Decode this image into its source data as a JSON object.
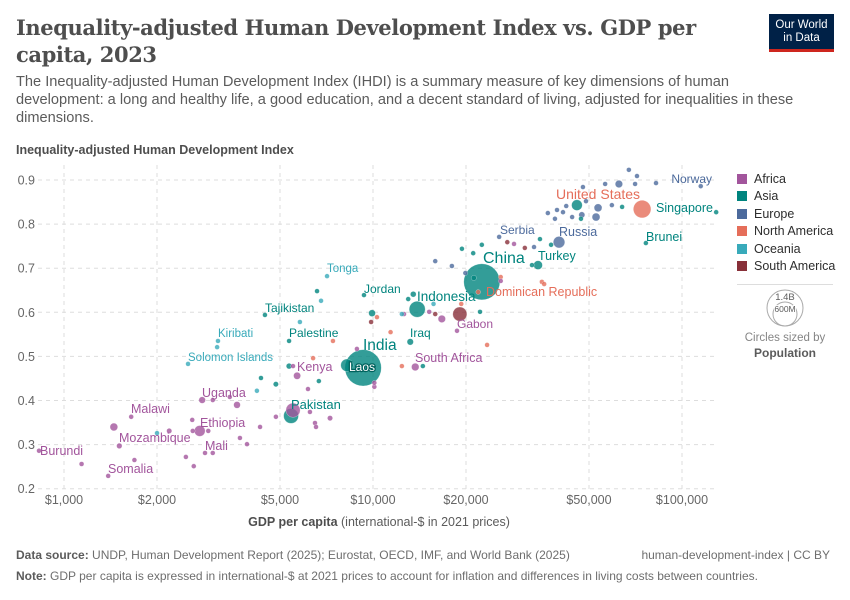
{
  "header": {
    "title": "Inequality-adjusted Human Development Index vs. GDP per capita, 2023",
    "subtitle": "The Inequality-adjusted Human Development Index (IHDI) is a summary measure of key dimensions of human development: a long and healthy life, a good education, and a decent standard of living, adjusted for inequalities in these dimensions.",
    "logo_line1": "Our World",
    "logo_line2": "in Data"
  },
  "footer": {
    "source_label": "Data source:",
    "source_text": "UNDP, Human Development Report (2025); Eurostat, OECD, IMF, and World Bank (2025)",
    "slug": "human-development-index | CC BY",
    "note_label": "Note:",
    "note_text": "GDP per capita is expressed in international-$ at 2021 prices to account for inflation and differences in living costs between countries."
  },
  "legend": {
    "size_title": "Circles sized by",
    "size_variable": "Population",
    "size_large": "1.4B",
    "size_small": "600M"
  },
  "chart_data": {
    "type": "scatter",
    "title": "Inequality-adjusted Human Development Index vs. GDP per capita, 2023",
    "ylabel": "Inequality-adjusted Human Development Index",
    "xlabel_bold": "GDP per capita",
    "xlabel_rest": "(international-$ in 2021 prices)",
    "x_scale": "log",
    "xlim": [
      750,
      128000
    ],
    "ylim": [
      0.2,
      0.93
    ],
    "x_ticks": [
      1000,
      2000,
      5000,
      10000,
      20000,
      50000,
      100000
    ],
    "x_tick_labels": [
      "$1,000",
      "$2,000",
      "$5,000",
      "$10,000",
      "$20,000",
      "$50,000",
      "$100,000"
    ],
    "y_ticks": [
      0.2,
      0.3,
      0.4,
      0.5,
      0.6,
      0.7,
      0.8,
      0.9
    ],
    "y_tick_labels": [
      "0.2",
      "0.3",
      "0.4",
      "0.5",
      "0.6",
      "0.7",
      "0.8",
      "0.9"
    ],
    "grid": true,
    "legend_position": "right",
    "series": [
      {
        "name": "Africa",
        "color": "#a2559c"
      },
      {
        "name": "Asia",
        "color": "#00847e"
      },
      {
        "name": "Europe",
        "color": "#4c6a9c"
      },
      {
        "name": "North America",
        "color": "#e56e5a"
      },
      {
        "name": "Oceania",
        "color": "#38aaba"
      },
      {
        "name": "South America",
        "color": "#883039"
      }
    ],
    "point_fields": [
      "label",
      "gdp_per_capita",
      "ihdi",
      "region",
      "population_millions"
    ],
    "points": [
      [
        "",
        67300,
        0.923,
        "Europe",
        5
      ],
      [
        "",
        71500,
        0.909,
        "Europe",
        9
      ],
      [
        "",
        62500,
        0.891,
        "Europe",
        60
      ],
      [
        "",
        56400,
        0.891,
        "Europe",
        5
      ],
      [
        "",
        70500,
        0.891,
        "Europe",
        6
      ],
      [
        "",
        82400,
        0.893,
        "Europe",
        6
      ],
      [
        "Norway",
        115000,
        0.886,
        "Europe",
        5.5
      ],
      [
        "",
        47800,
        0.884,
        "Europe",
        6
      ],
      [
        "",
        59300,
        0.843,
        "Europe",
        10
      ],
      [
        "",
        53500,
        0.837,
        "Europe",
        67
      ],
      [
        "",
        52700,
        0.816,
        "Europe",
        68
      ],
      [
        "",
        47400,
        0.821,
        "Europe",
        40
      ],
      [
        "",
        44100,
        0.816,
        "Europe",
        11
      ],
      [
        "",
        41200,
        0.827,
        "Europe",
        5
      ],
      [
        "",
        39400,
        0.832,
        "Europe",
        4
      ],
      [
        "",
        36800,
        0.825,
        "Europe",
        3
      ],
      [
        "",
        38800,
        0.812,
        "Europe",
        10
      ],
      [
        "",
        42200,
        0.841,
        "Europe",
        3
      ],
      [
        "",
        48900,
        0.852,
        "Europe",
        5
      ],
      [
        "Serbia",
        25600,
        0.771,
        "Europe",
        7
      ],
      [
        "",
        33200,
        0.748,
        "Europe",
        3
      ],
      [
        "Russia",
        40000,
        0.759,
        "Europe",
        144
      ],
      [
        "",
        15900,
        0.716,
        "Europe",
        6
      ],
      [
        "",
        18000,
        0.705,
        "Europe",
        3
      ],
      [
        "",
        19900,
        0.689,
        "Europe",
        2
      ],
      [
        "",
        64000,
        0.839,
        "Asia",
        5
      ],
      [
        "",
        45700,
        0.843,
        "Asia",
        124
      ],
      [
        "",
        47100,
        0.812,
        "Asia",
        4
      ],
      [
        "",
        34700,
        0.766,
        "Asia",
        3
      ],
      [
        "",
        37700,
        0.753,
        "Asia",
        3
      ],
      [
        "",
        19400,
        0.744,
        "Asia",
        3
      ],
      [
        "",
        21100,
        0.734,
        "Asia",
        4
      ],
      [
        "",
        22500,
        0.753,
        "Asia",
        3
      ],
      [
        "",
        32700,
        0.707,
        "Asia",
        7
      ],
      [
        "Turkey",
        34200,
        0.707,
        "Asia",
        85
      ],
      [
        "",
        21200,
        0.678,
        "Asia",
        30
      ],
      [
        "China",
        22500,
        0.669,
        "Asia",
        1410
      ],
      [
        "",
        22200,
        0.601,
        "Asia",
        3
      ],
      [
        "",
        13000,
        0.63,
        "Asia",
        10
      ],
      [
        "",
        13500,
        0.641,
        "Asia",
        36
      ],
      [
        "",
        9930,
        0.598,
        "Asia",
        50
      ],
      [
        "",
        14500,
        0.478,
        "Asia",
        3
      ],
      [
        "Jordan",
        9350,
        0.639,
        "Asia",
        11
      ],
      [
        "Indonesia",
        13900,
        0.607,
        "Asia",
        278
      ],
      [
        "Iraq",
        13200,
        0.533,
        "Asia",
        45
      ],
      [
        "Tajikistan",
        4470,
        0.594,
        "Asia",
        10
      ],
      [
        "",
        6590,
        0.648,
        "Asia",
        3
      ],
      [
        "Palestine",
        5350,
        0.535,
        "Asia",
        5
      ],
      [
        "",
        6680,
        0.444,
        "Asia",
        3
      ],
      [
        "",
        5350,
        0.478,
        "Asia",
        35
      ],
      [
        "",
        4850,
        0.437,
        "Asia",
        30
      ],
      [
        "",
        4340,
        0.451,
        "Asia",
        5
      ],
      [
        "Pakistan",
        5430,
        0.365,
        "Asia",
        240
      ],
      [
        "India",
        9290,
        0.474,
        "Asia",
        1430
      ],
      [
        "",
        8240,
        0.48,
        "Asia",
        170
      ],
      [
        "Laos",
        9000,
        0.47,
        "Asia",
        7.6
      ],
      [
        "Brunei",
        76400,
        0.757,
        "Asia",
        0.45
      ],
      [
        "Singapore",
        129000,
        0.827,
        "Asia",
        6
      ],
      [
        "United States",
        74300,
        0.834,
        "North America",
        335
      ],
      [
        "Dominican Republic",
        21900,
        0.646,
        "North America",
        11
      ],
      [
        "",
        25900,
        0.68,
        "North America",
        3
      ],
      [
        "",
        35200,
        0.669,
        "North America",
        3
      ],
      [
        "",
        35800,
        0.664,
        "North America",
        3
      ],
      [
        "",
        19300,
        0.619,
        "North America",
        3
      ],
      [
        "",
        10300,
        0.589,
        "North America",
        3
      ],
      [
        "",
        11400,
        0.555,
        "North America",
        3
      ],
      [
        "",
        7420,
        0.535,
        "North America",
        3
      ],
      [
        "",
        6400,
        0.496,
        "North America",
        3
      ],
      [
        "",
        12400,
        0.478,
        "North America",
        3
      ],
      [
        "",
        23400,
        0.526,
        "North America",
        3
      ],
      [
        "Tonga",
        7100,
        0.682,
        "Oceania",
        0.1
      ],
      [
        "",
        6790,
        0.626,
        "Oceania",
        3
      ],
      [
        "",
        5800,
        0.578,
        "Oceania",
        1
      ],
      [
        "Kiribati",
        3150,
        0.535,
        "Oceania",
        0.13
      ],
      [
        "",
        3130,
        0.521,
        "Oceania",
        0.3
      ],
      [
        "Solomon Islands",
        2520,
        0.483,
        "Oceania",
        0.7
      ],
      [
        "",
        4210,
        0.422,
        "Oceania",
        3
      ],
      [
        "",
        12400,
        0.596,
        "Oceania",
        1
      ],
      [
        "",
        15700,
        0.619,
        "Oceania",
        1
      ],
      [
        "",
        2000,
        0.326,
        "Oceania",
        9
      ],
      [
        "",
        19100,
        0.596,
        "South America",
        216
      ],
      [
        "",
        27200,
        0.759,
        "South America",
        19
      ],
      [
        "",
        31000,
        0.746,
        "South America",
        3
      ],
      [
        "",
        9860,
        0.578,
        "South America",
        3
      ],
      [
        "",
        15900,
        0.596,
        "South America",
        3
      ],
      [
        "Gabon",
        18700,
        0.558,
        "Africa",
        2.4
      ],
      [
        "",
        16700,
        0.585,
        "Africa",
        60
      ],
      [
        "",
        15200,
        0.601,
        "Africa",
        3
      ],
      [
        "",
        28600,
        0.755,
        "Africa",
        3
      ],
      [
        "",
        25900,
        0.671,
        "Africa",
        3
      ],
      [
        "",
        12600,
        0.596,
        "Africa",
        3
      ],
      [
        "South Africa",
        13700,
        0.476,
        "Africa",
        62
      ],
      [
        "",
        8870,
        0.517,
        "Africa",
        20
      ],
      [
        "",
        10100,
        0.431,
        "Africa",
        3
      ],
      [
        "",
        10100,
        0.44,
        "Africa",
        3
      ],
      [
        "Kenya",
        5680,
        0.456,
        "Africa",
        55
      ],
      [
        "",
        5510,
        0.478,
        "Africa",
        3
      ],
      [
        "",
        6160,
        0.426,
        "Africa",
        3
      ],
      [
        "",
        6250,
        0.374,
        "Africa",
        3
      ],
      [
        "",
        7260,
        0.36,
        "Africa",
        30
      ],
      [
        "",
        6490,
        0.349,
        "Africa",
        12
      ],
      [
        "",
        6540,
        0.34,
        "Africa",
        3
      ],
      [
        "",
        4850,
        0.363,
        "Africa",
        20
      ],
      [
        "",
        4310,
        0.34,
        "Africa",
        3
      ],
      [
        "",
        5510,
        0.378,
        "Africa",
        220
      ],
      [
        "",
        3630,
        0.39,
        "Africa",
        50
      ],
      [
        "",
        3030,
        0.401,
        "Africa",
        3
      ],
      [
        "",
        3440,
        0.408,
        "Africa",
        3
      ],
      [
        "Uganda",
        2800,
        0.401,
        "Africa",
        48
      ],
      [
        "",
        2600,
        0.356,
        "Africa",
        3
      ],
      [
        "",
        2610,
        0.331,
        "Africa",
        3
      ],
      [
        "Ethiopia",
        2750,
        0.331,
        "Africa",
        126
      ],
      [
        "",
        2930,
        0.331,
        "Africa",
        3
      ],
      [
        "",
        3710,
        0.315,
        "Africa",
        3
      ],
      [
        "",
        3910,
        0.301,
        "Africa",
        3
      ],
      [
        "Mali",
        3030,
        0.281,
        "Africa",
        23
      ],
      [
        "",
        2860,
        0.281,
        "Africa",
        3
      ],
      [
        "",
        2480,
        0.272,
        "Africa",
        3
      ],
      [
        "",
        2630,
        0.251,
        "Africa",
        3
      ],
      [
        "",
        2190,
        0.331,
        "Africa",
        30
      ],
      [
        "Malawi",
        1650,
        0.363,
        "Africa",
        20
      ],
      [
        "",
        1450,
        0.34,
        "Africa",
        65
      ],
      [
        "Mozambique",
        1510,
        0.297,
        "Africa",
        33
      ],
      [
        "",
        1690,
        0.265,
        "Africa",
        3
      ],
      [
        "",
        1140,
        0.256,
        "Africa",
        3
      ],
      [
        "Somalia",
        1390,
        0.229,
        "Africa",
        18
      ],
      [
        "Burundi",
        830,
        0.286,
        "Africa",
        13
      ]
    ]
  }
}
